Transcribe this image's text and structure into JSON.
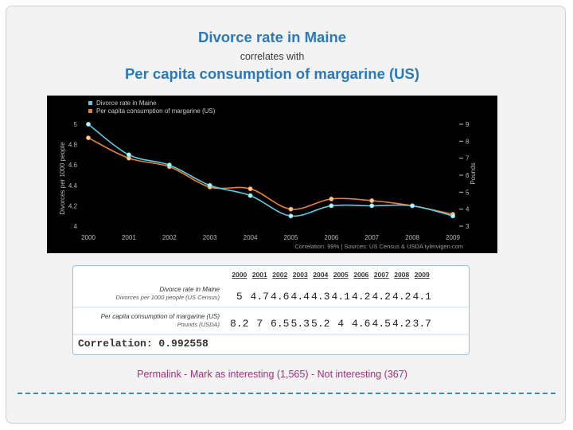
{
  "header": {
    "title": "Divorce rate in Maine",
    "connector": "correlates with",
    "subtitle": "Per capita consumption of margarine (US)"
  },
  "chart_data": {
    "type": "line",
    "x": [
      2000,
      2001,
      2002,
      2003,
      2004,
      2005,
      2006,
      2007,
      2008,
      2009
    ],
    "x_tick_labels": [
      "2000",
      "2001",
      "2002",
      "2003",
      "2004",
      "2005",
      "2006",
      "2007",
      "2008",
      "2009"
    ],
    "series": [
      {
        "name": "Divorce rate in Maine",
        "axis": "left",
        "color": "#5bcde0",
        "values": [
          5,
          4.7,
          4.6,
          4.4,
          4.3,
          4.1,
          4.2,
          4.2,
          4.2,
          4.1
        ]
      },
      {
        "name": "Per capita consumption of margarine (US)",
        "axis": "right",
        "color": "#e8823a",
        "values": [
          8.2,
          7,
          6.5,
          5.3,
          5.2,
          4,
          4.6,
          4.5,
          4.2,
          3.7
        ]
      }
    ],
    "ylabel_left": "Divorces per 1000 people",
    "ylabel_right": "Pounds",
    "ylim_left": [
      4,
      5
    ],
    "ylim_right": [
      3,
      9
    ],
    "left_tick_labels": [
      "5",
      "4.8",
      "4.6",
      "4.4",
      "4.2",
      "4"
    ],
    "right_tick_labels": [
      "9",
      "8",
      "7",
      "6",
      "5",
      "4",
      "3"
    ],
    "footer_note": "Correlation: 99%   |   Sources: US Census & USDA   tylervigen.com",
    "legend_position": "top-left",
    "background": "#000000"
  },
  "table": {
    "years": [
      "2000",
      "2001",
      "2002",
      "2003",
      "2004",
      "2005",
      "2006",
      "2007",
      "2008",
      "2009"
    ],
    "rows": [
      {
        "label_main": "Divorce rate in Maine",
        "label_sub": "Divorces per 1000 people (US Census)",
        "values": [
          "5",
          "4.7",
          "4.6",
          "4.4",
          "4.3",
          "4.1",
          "4.2",
          "4.2",
          "4.2",
          "4.1"
        ]
      },
      {
        "label_main": "Per capita consumption of margarine (US)",
        "label_sub": "Pounds (USDA)",
        "values": [
          "8.2",
          "7",
          "6.5",
          "5.3",
          "5.2",
          "4",
          "4.6",
          "4.5",
          "4.2",
          "3.7"
        ]
      }
    ],
    "correlation": "Correlation: 0.992558"
  },
  "footer": {
    "permalink": "Permalink - Mark as interesting (1,565) - Not interesting (367)"
  },
  "colors": {
    "title": "#2b79b8",
    "permalink": "#a0307c",
    "table_border": "#86c5e3",
    "divider": "#3e8fb5"
  }
}
